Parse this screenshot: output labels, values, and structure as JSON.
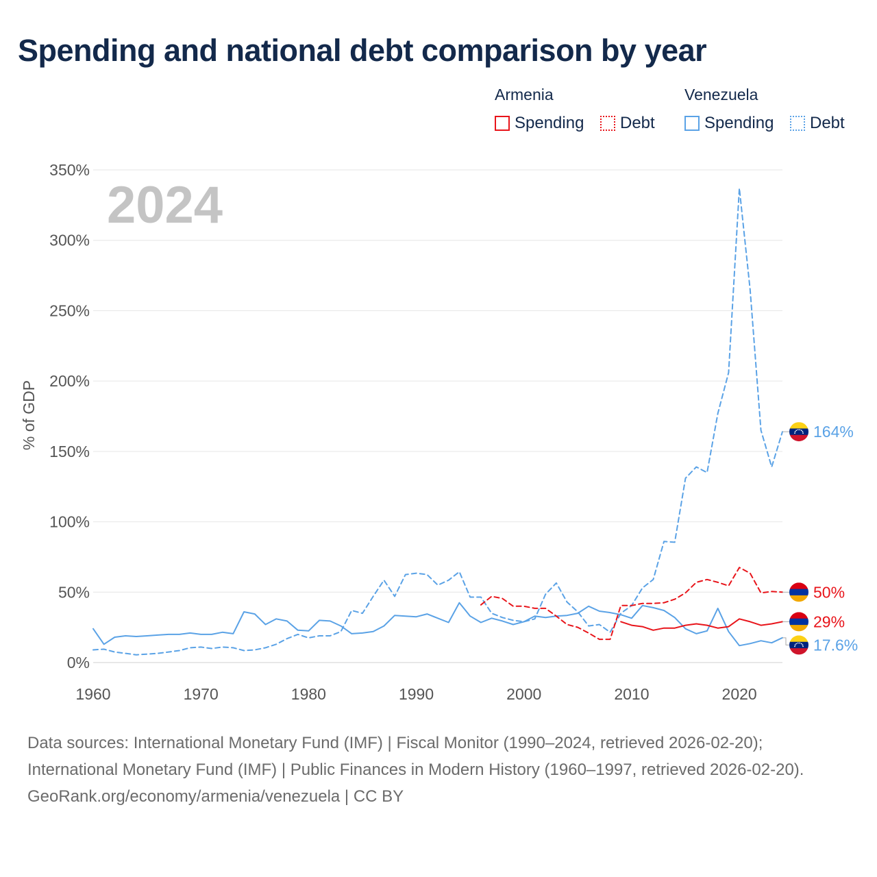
{
  "title": "Spending and national debt comparison by year",
  "legend": {
    "groups": [
      {
        "country": "Armenia",
        "color": "#e8141a",
        "items": [
          {
            "label": "Spending",
            "style": "solid"
          },
          {
            "label": "Debt",
            "style": "dotted"
          }
        ]
      },
      {
        "country": "Venezuela",
        "color": "#5aa2e6",
        "items": [
          {
            "label": "Spending",
            "style": "solid"
          },
          {
            "label": "Debt",
            "style": "dotted"
          }
        ]
      }
    ]
  },
  "chart_data": {
    "type": "line",
    "year_label": "2024",
    "ylabel": "% of GDP",
    "xlabel": "",
    "xlim": [
      1960,
      2024
    ],
    "ylim": [
      0,
      350
    ],
    "x_ticks": [
      1960,
      1970,
      1980,
      1990,
      2000,
      2010,
      2020
    ],
    "x_tick_labels": [
      "1960",
      "1970",
      "1980",
      "1990",
      "2000",
      "2010",
      "2020"
    ],
    "y_ticks": [
      0,
      50,
      100,
      150,
      200,
      250,
      300,
      350
    ],
    "y_tick_labels": [
      "0%",
      "50%",
      "100%",
      "150%",
      "200%",
      "250%",
      "300%",
      "350%"
    ],
    "grid": true,
    "series": [
      {
        "name": "Venezuela Spending",
        "country": "Venezuela",
        "metric": "Spending",
        "color": "#5aa2e6",
        "dash": "solid",
        "x": [
          1960,
          1961,
          1962,
          1963,
          1964,
          1965,
          1966,
          1967,
          1968,
          1969,
          1970,
          1971,
          1972,
          1973,
          1974,
          1975,
          1976,
          1977,
          1978,
          1979,
          1980,
          1981,
          1982,
          1983,
          1984,
          1985,
          1986,
          1987,
          1988,
          1989,
          1990,
          1991,
          1992,
          1993,
          1994,
          1995,
          1996,
          1997,
          1998,
          1999,
          2000,
          2001,
          2002,
          2003,
          2004,
          2005,
          2006,
          2007,
          2008,
          2009,
          2010,
          2011,
          2012,
          2013,
          2014,
          2015,
          2016,
          2017,
          2018,
          2019,
          2020,
          2021,
          2022,
          2023,
          2024
        ],
        "values": [
          24,
          13,
          18,
          19,
          18.5,
          19,
          19.5,
          20,
          20,
          21,
          20,
          20,
          21.5,
          20.5,
          36,
          34.5,
          27,
          31,
          29.5,
          23,
          22.5,
          30,
          29.5,
          26,
          20.5,
          21,
          22,
          26,
          33.5,
          33,
          32.5,
          34.5,
          31.5,
          28.5,
          42.5,
          33,
          28.5,
          31.5,
          29.5,
          27,
          29,
          33,
          32,
          33,
          33.5,
          35,
          40,
          36.5,
          35.5,
          34,
          31.5,
          40.5,
          39,
          37,
          32,
          24,
          20.5,
          22.5,
          38.5,
          22,
          12,
          13.5,
          15.5,
          14,
          17.6
        ]
      },
      {
        "name": "Venezuela Debt",
        "country": "Venezuela",
        "metric": "Debt",
        "color": "#5aa2e6",
        "dash": "dashed",
        "x": [
          1960,
          1961,
          1962,
          1963,
          1964,
          1965,
          1966,
          1967,
          1968,
          1969,
          1970,
          1971,
          1972,
          1973,
          1974,
          1975,
          1976,
          1977,
          1978,
          1979,
          1980,
          1981,
          1982,
          1983,
          1984,
          1985,
          1986,
          1987,
          1988,
          1989,
          1990,
          1991,
          1992,
          1993,
          1994,
          1995,
          1996,
          1997,
          1998,
          1999,
          2000,
          2001,
          2002,
          2003,
          2004,
          2005,
          2006,
          2007,
          2008,
          2009,
          2010,
          2011,
          2012,
          2013,
          2014,
          2015,
          2016,
          2017,
          2018,
          2019,
          2020,
          2021,
          2022,
          2023,
          2024
        ],
        "values": [
          9,
          9.5,
          7.5,
          6.5,
          5.5,
          6,
          6.5,
          7.5,
          8.5,
          10.5,
          11,
          10,
          11,
          10.5,
          8.5,
          9,
          10.5,
          13,
          17,
          20,
          17.5,
          19,
          19,
          22,
          37,
          35,
          47,
          58.5,
          47,
          62.5,
          63.5,
          62.5,
          55,
          58.5,
          64.5,
          46.5,
          46.5,
          35,
          32,
          30,
          29,
          31,
          48.5,
          56.5,
          43,
          36,
          26,
          27,
          21.5,
          35,
          40.5,
          53,
          59,
          86,
          85.5,
          131,
          139,
          135,
          177,
          206,
          337,
          265,
          165,
          139,
          164
        ]
      },
      {
        "name": "Armenia Spending",
        "country": "Armenia",
        "metric": "Spending",
        "color": "#e8141a",
        "dash": "solid",
        "x": [
          2009,
          2010,
          2011,
          2012,
          2013,
          2014,
          2015,
          2016,
          2017,
          2018,
          2019,
          2020,
          2021,
          2022,
          2023,
          2024
        ],
        "values": [
          29,
          26.5,
          25.5,
          23,
          24.5,
          24.5,
          26.5,
          27.5,
          26.5,
          24.5,
          25.5,
          31,
          29,
          26.5,
          27.5,
          29
        ]
      },
      {
        "name": "Armenia Debt",
        "country": "Armenia",
        "metric": "Debt",
        "color": "#e8141a",
        "dash": "dashed",
        "x": [
          1996,
          1997,
          1998,
          1999,
          2000,
          2001,
          2002,
          2003,
          2004,
          2005,
          2006,
          2007,
          2008,
          2009,
          2010,
          2011,
          2012,
          2013,
          2014,
          2015,
          2016,
          2017,
          2018,
          2019,
          2020,
          2021,
          2022,
          2023,
          2024
        ],
        "values": [
          41,
          47,
          45.5,
          40,
          40,
          38.5,
          38.5,
          33,
          27,
          25,
          21,
          16.5,
          16.5,
          40.5,
          40.5,
          42,
          42,
          42.5,
          45,
          49.5,
          57,
          59,
          57,
          54.5,
          67.5,
          63.5,
          49.5,
          50.5,
          50
        ]
      }
    ],
    "end_labels": [
      {
        "country": "Venezuela",
        "metric": "Debt",
        "text": "164%",
        "value": 164,
        "color": "#5aa2e6"
      },
      {
        "country": "Armenia",
        "metric": "Debt",
        "text": "50%",
        "value": 50,
        "color": "#e8141a"
      },
      {
        "country": "Armenia",
        "metric": "Spending",
        "text": "29%",
        "value": 29,
        "color": "#e8141a"
      },
      {
        "country": "Venezuela",
        "metric": "Spending",
        "text": "17.6%",
        "value": 17.6,
        "color": "#5aa2e6"
      }
    ]
  },
  "flags": {
    "Armenia": {
      "colors": [
        "#d90012",
        "#0033a0",
        "#f2a800"
      ]
    },
    "Venezuela": {
      "colors": [
        "#fcd116",
        "#00247d",
        "#cf142b"
      ]
    }
  },
  "footer": {
    "sources": "Data sources: International Monetary Fund (IMF) | Fiscal Monitor (1990–2024, retrieved 2026-02-20); International Monetary Fund (IMF) | Public Finances in Modern History (1960–1997, retrieved 2026-02-20).",
    "credit": "GeoRank.org/economy/armenia/venezuela | CC BY"
  }
}
